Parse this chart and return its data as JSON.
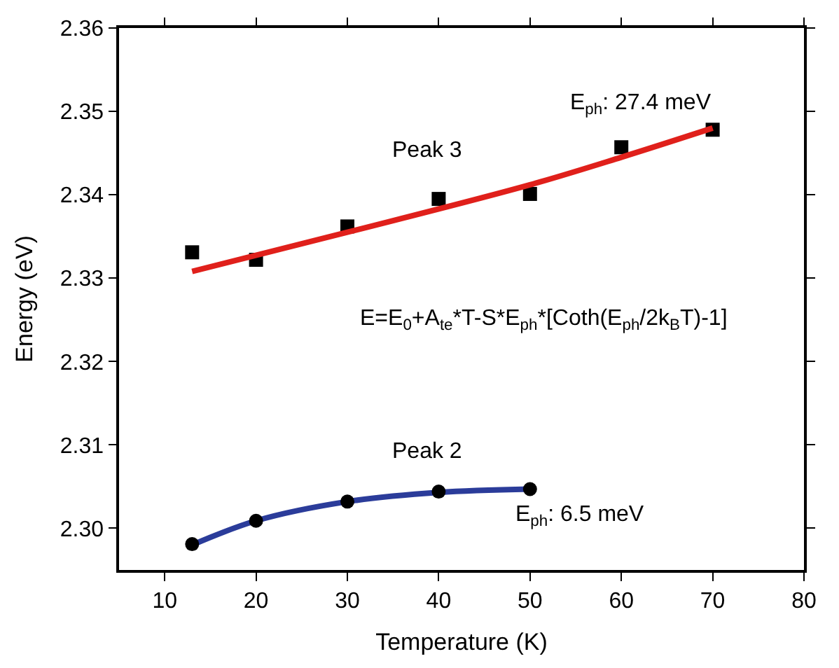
{
  "chart_data": {
    "type": "scatter",
    "xlabel": "Temperature (K)",
    "ylabel": "Energy (eV)",
    "xlim": [
      5,
      80
    ],
    "xticks": [
      10,
      20,
      30,
      40,
      50,
      60,
      70,
      80
    ],
    "ylim": [
      2.295,
      2.36
    ],
    "yticks": [
      {
        "value": 2.3,
        "label": "2.30"
      },
      {
        "value": 2.31,
        "label": "2.31"
      },
      {
        "value": 2.32,
        "label": "2.32"
      },
      {
        "value": 2.33,
        "label": "2.33"
      },
      {
        "value": 2.34,
        "label": "2.34"
      },
      {
        "value": 2.35,
        "label": "2.35"
      },
      {
        "value": 2.36,
        "label": "2.36"
      }
    ],
    "grid": false,
    "legend": false,
    "series": [
      {
        "marker": "square",
        "color": "#000000",
        "x": [
          13,
          20,
          30,
          40,
          50,
          60,
          70
        ],
        "values": [
          2.3331,
          2.3322,
          2.3362,
          2.3395,
          2.3401,
          2.3457,
          2.3478
        ]
      },
      {
        "type": "line",
        "marker": "none",
        "line_style": "solid",
        "color": "#e0201b",
        "x": [
          13,
          30,
          50,
          60,
          70
        ],
        "values": [
          2.3308,
          2.3355,
          2.3412,
          2.3445,
          2.348
        ]
      },
      {
        "type": "line",
        "marker": "none",
        "line_style": "solid",
        "color": "#2b3c9a",
        "x": [
          13,
          20,
          30,
          40,
          50
        ],
        "values": [
          2.298,
          2.3009,
          2.3032,
          2.3043,
          2.3047
        ]
      },
      {
        "marker": "circle",
        "color": "#000000",
        "x": [
          13,
          20,
          30,
          40,
          50
        ],
        "values": [
          2.2981,
          2.3009,
          2.3032,
          2.3044,
          2.3047
        ]
      }
    ],
    "annotations": [
      "E$_{ph}$: 27.4 meV",
      "Peak 3",
      "E=E$_{0}$+A$_{te}$*T-S*E$_{ph}$*[Coth(E$_{ph}$/2k$_{B}$T)-1]",
      "Peak 2",
      "E$_{ph}$: 6.5 meV"
    ]
  }
}
